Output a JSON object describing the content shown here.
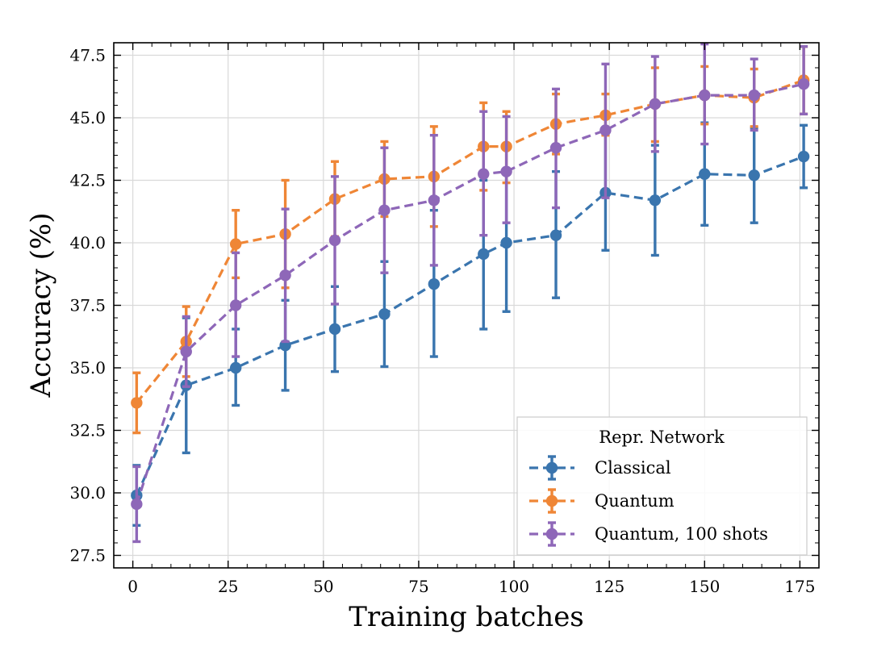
{
  "chart_data": {
    "type": "line",
    "xlabel": "Training batches",
    "ylabel": "Accuracy (%)",
    "xlim": [
      -5,
      180
    ],
    "ylim": [
      27,
      48
    ],
    "xticks": [
      0,
      25,
      50,
      75,
      100,
      125,
      150,
      175
    ],
    "yticks": [
      27.5,
      30.0,
      32.5,
      35.0,
      37.5,
      40.0,
      42.5,
      45.0,
      47.5
    ],
    "xtick_labels": [
      "0",
      "25",
      "50",
      "75",
      "100",
      "125",
      "150",
      "175"
    ],
    "ytick_labels": [
      "27.5",
      "30.0",
      "32.5",
      "35.0",
      "37.5",
      "40.0",
      "42.5",
      "45.0",
      "47.5"
    ],
    "grid": true,
    "legend": {
      "title": "Repr. Network",
      "placement": "lower-right"
    },
    "series": [
      {
        "name": "Classical",
        "color": "#3a75ae",
        "x": [
          1,
          14,
          27,
          40,
          53,
          66,
          79,
          92,
          98,
          111,
          124,
          137,
          150,
          163,
          176
        ],
        "y": [
          29.9,
          34.3,
          35.0,
          35.9,
          36.55,
          37.15,
          38.35,
          39.55,
          40.0,
          40.3,
          42.0,
          41.7,
          42.75,
          42.7,
          43.45
        ],
        "err_low": [
          28.7,
          31.6,
          33.5,
          34.1,
          34.85,
          35.05,
          35.45,
          36.55,
          37.25,
          37.8,
          39.7,
          39.5,
          40.7,
          40.8,
          42.2
        ],
        "err_high": [
          31.1,
          37.0,
          36.55,
          37.7,
          38.25,
          39.25,
          41.3,
          42.5,
          42.75,
          42.85,
          44.35,
          43.9,
          44.8,
          44.6,
          44.7
        ]
      },
      {
        "name": "Quantum",
        "color": "#ef8636",
        "x": [
          1,
          14,
          27,
          40,
          53,
          66,
          79,
          92,
          98,
          111,
          124,
          137,
          150,
          163,
          176
        ],
        "y": [
          33.6,
          36.05,
          39.95,
          40.35,
          41.75,
          42.55,
          42.65,
          43.85,
          43.85,
          44.75,
          45.1,
          45.55,
          45.9,
          45.8,
          46.5
        ],
        "err_low": [
          32.4,
          34.65,
          38.6,
          38.2,
          40.25,
          41.05,
          40.65,
          42.1,
          42.4,
          43.55,
          44.3,
          44.05,
          44.75,
          44.65,
          45.15
        ],
        "err_high": [
          34.8,
          37.45,
          41.3,
          42.5,
          43.25,
          44.05,
          44.65,
          45.6,
          45.25,
          45.95,
          45.95,
          47.0,
          47.05,
          46.95,
          47.85
        ]
      },
      {
        "name": "Quantum, 100 shots",
        "color": "#8e67b8",
        "x": [
          1,
          14,
          27,
          40,
          53,
          66,
          79,
          92,
          98,
          111,
          124,
          137,
          150,
          163,
          176
        ],
        "y": [
          29.55,
          35.65,
          37.5,
          38.7,
          40.1,
          41.3,
          41.7,
          42.75,
          42.85,
          43.8,
          44.5,
          45.55,
          45.9,
          45.9,
          46.35
        ],
        "err_low": [
          28.05,
          34.25,
          35.45,
          36.05,
          37.55,
          38.8,
          39.1,
          40.3,
          40.8,
          41.4,
          41.8,
          43.65,
          43.95,
          44.5,
          45.15
        ],
        "err_high": [
          31.05,
          37.05,
          39.6,
          41.35,
          42.65,
          43.8,
          44.3,
          45.25,
          45.05,
          46.15,
          47.15,
          47.45,
          47.95,
          47.35,
          47.85
        ]
      }
    ]
  }
}
